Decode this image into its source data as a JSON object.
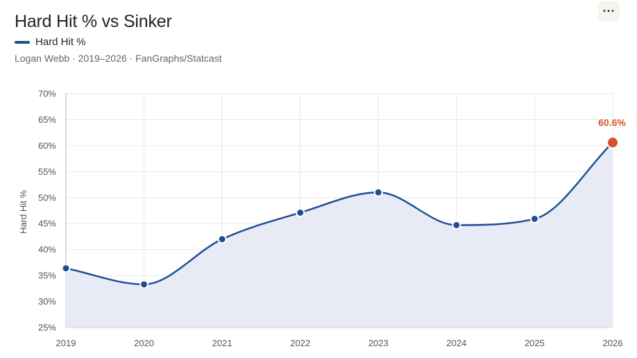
{
  "header": {
    "title": "Hard Hit % vs Sinker",
    "subtitle": "Logan Webb · 2019–2026 · FanGraphs/Statcast",
    "menu_label": "···"
  },
  "colors": {
    "line": "#1f4e95",
    "area": "#e8ebf5",
    "highlight": "#d6532b",
    "grid": "#e6e6e6"
  },
  "chart_data": {
    "type": "line",
    "categories": [
      "2019",
      "2020",
      "2021",
      "2022",
      "2023",
      "2024",
      "2025",
      "2026"
    ],
    "series": [
      {
        "name": "Hard Hit %",
        "values": [
          36.4,
          33.3,
          42.0,
          47.1,
          51.0,
          44.7,
          45.9,
          60.6
        ]
      }
    ],
    "ylabel": "Hard Hit %",
    "ylim": [
      25,
      70
    ],
    "yticks": [
      25,
      30,
      35,
      40,
      45,
      50,
      55,
      60,
      65,
      70
    ],
    "ytick_labels": [
      "25%",
      "30%",
      "35%",
      "40%",
      "45%",
      "50%",
      "55%",
      "60%",
      "65%",
      "70%"
    ],
    "highlight_label": "60.6%",
    "grid": true,
    "area_fill": true,
    "smooth": true
  }
}
